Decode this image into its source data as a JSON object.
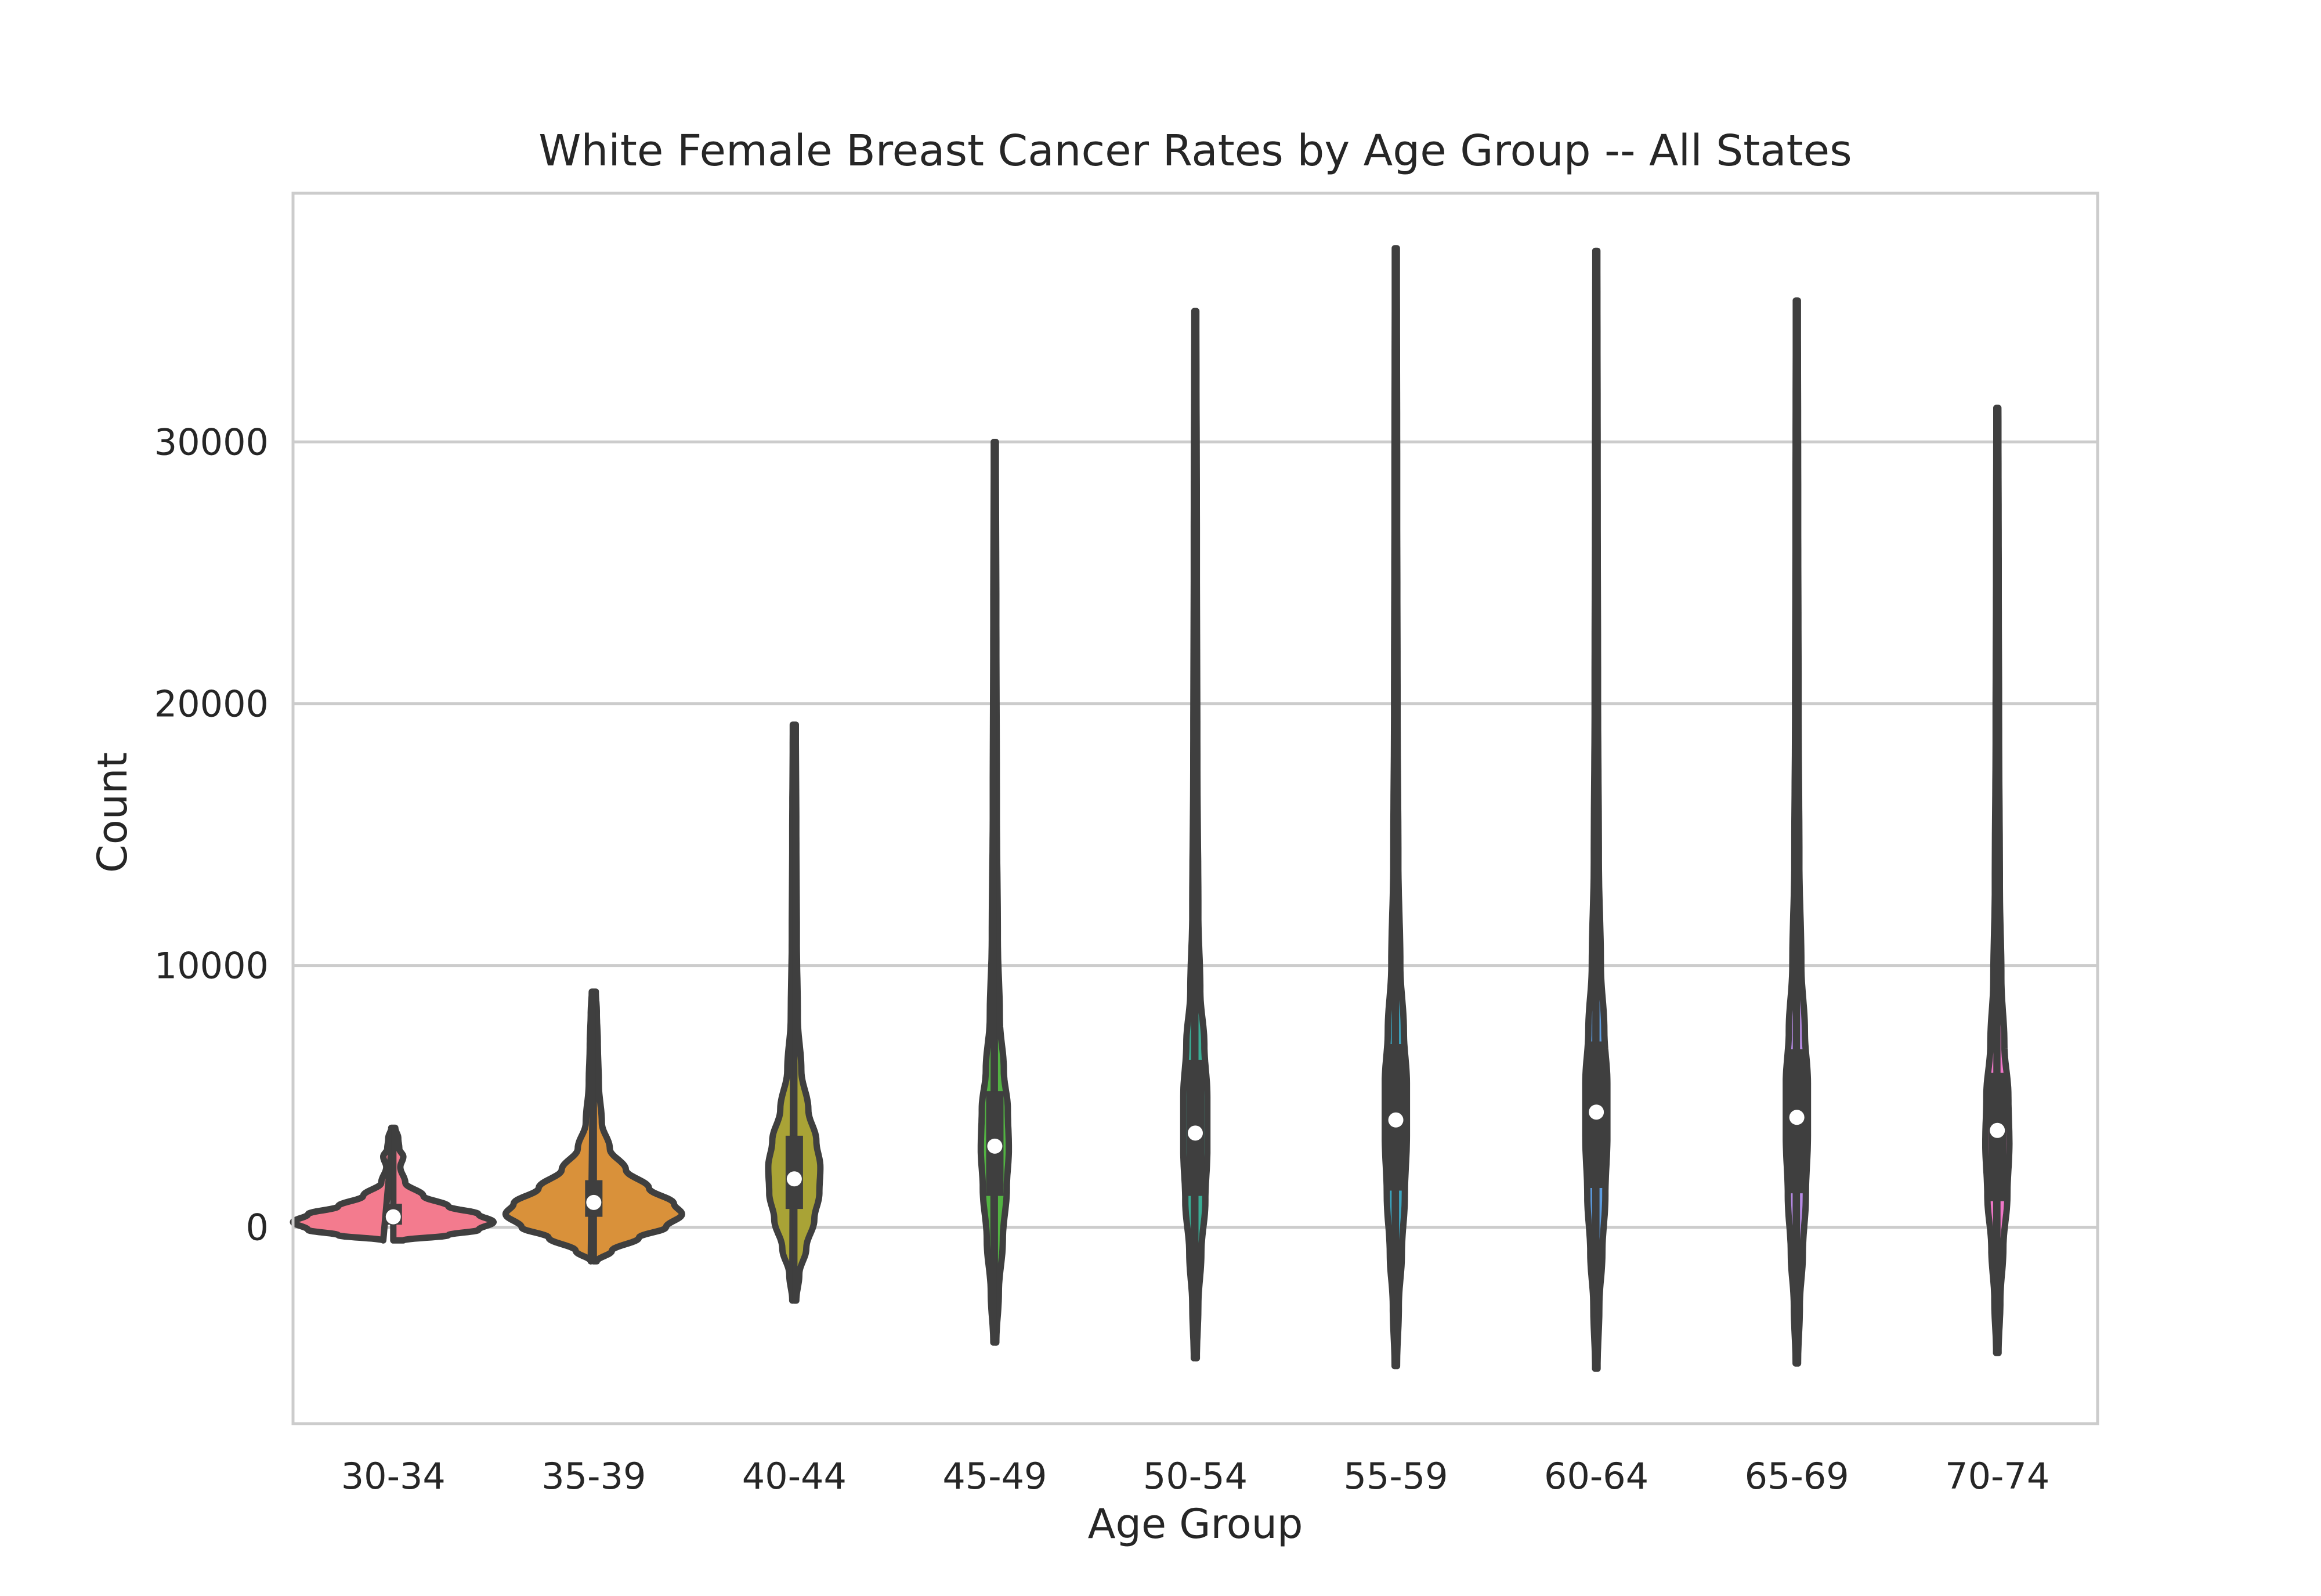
{
  "chart_data": {
    "type": "violin",
    "title": "White Female Breast Cancer Rates by Age Group -- All States",
    "xlabel": "Age Group",
    "ylabel": "Count",
    "ylim": [
      -7500,
      39500
    ],
    "yticks": [
      0,
      10000,
      20000,
      30000
    ],
    "grid": true,
    "categories": [
      "30-34",
      "35-39",
      "40-44",
      "45-49",
      "50-54",
      "55-59",
      "60-64",
      "65-69",
      "70-74"
    ],
    "colors": [
      "#F37B8E",
      "#D9913A",
      "#A9A336",
      "#52B342",
      "#38AE95",
      "#3AA6C1",
      "#5B9BE0",
      "#B78AE6",
      "#EF76C7"
    ],
    "outline_color": "#3F3F3F",
    "violins": [
      {
        "category": "30-34",
        "min": -500,
        "max": 3800,
        "q1": 100,
        "median": 400,
        "q3": 900,
        "profile": [
          [
            -500,
            0.1
          ],
          [
            -300,
            0.55
          ],
          [
            -100,
            0.85
          ],
          [
            200,
            1.0
          ],
          [
            500,
            0.85
          ],
          [
            800,
            0.55
          ],
          [
            1200,
            0.3
          ],
          [
            1700,
            0.12
          ],
          [
            2300,
            0.07
          ],
          [
            2700,
            0.1
          ],
          [
            3000,
            0.06
          ],
          [
            3400,
            0.05
          ],
          [
            3800,
            0.02
          ]
        ]
      },
      {
        "category": "35-39",
        "min": -1300,
        "max": 9000,
        "q1": 400,
        "median": 950,
        "q3": 1800,
        "profile": [
          [
            -1300,
            0.03
          ],
          [
            -900,
            0.18
          ],
          [
            -400,
            0.45
          ],
          [
            0,
            0.72
          ],
          [
            500,
            0.88
          ],
          [
            900,
            0.8
          ],
          [
            1500,
            0.55
          ],
          [
            2200,
            0.32
          ],
          [
            3000,
            0.16
          ],
          [
            4000,
            0.08
          ],
          [
            5500,
            0.05
          ],
          [
            7000,
            0.04
          ],
          [
            8200,
            0.03
          ],
          [
            9000,
            0.02
          ]
        ]
      },
      {
        "category": "40-44",
        "min": -2800,
        "max": 19200,
        "q1": 700,
        "median": 1850,
        "q3": 3500,
        "profile": [
          [
            -2800,
            0.02
          ],
          [
            -1800,
            0.05
          ],
          [
            -800,
            0.12
          ],
          [
            300,
            0.2
          ],
          [
            1300,
            0.25
          ],
          [
            2300,
            0.26
          ],
          [
            3300,
            0.22
          ],
          [
            4500,
            0.14
          ],
          [
            6000,
            0.07
          ],
          [
            8000,
            0.035
          ],
          [
            11000,
            0.025
          ],
          [
            15000,
            0.02
          ],
          [
            19200,
            0.015
          ]
        ]
      },
      {
        "category": "45-49",
        "min": -4400,
        "max": 30000,
        "q1": 1200,
        "median": 3100,
        "q3": 5200,
        "profile": [
          [
            -4400,
            0.015
          ],
          [
            -2500,
            0.04
          ],
          [
            -500,
            0.08
          ],
          [
            1500,
            0.12
          ],
          [
            3000,
            0.14
          ],
          [
            4500,
            0.13
          ],
          [
            6000,
            0.09
          ],
          [
            8000,
            0.05
          ],
          [
            11000,
            0.03
          ],
          [
            16000,
            0.02
          ],
          [
            23000,
            0.015
          ],
          [
            30000,
            0.01
          ]
        ]
      },
      {
        "category": "50-54",
        "min": -5000,
        "max": 35000,
        "q1": 1200,
        "median": 3600,
        "q3": 6400,
        "profile": [
          [
            -5000,
            0.015
          ],
          [
            -3000,
            0.03
          ],
          [
            -1000,
            0.06
          ],
          [
            1000,
            0.1
          ],
          [
            3000,
            0.12
          ],
          [
            5000,
            0.12
          ],
          [
            7000,
            0.09
          ],
          [
            9000,
            0.05
          ],
          [
            12000,
            0.03
          ],
          [
            18000,
            0.02
          ],
          [
            26000,
            0.015
          ],
          [
            35000,
            0.01
          ]
        ]
      },
      {
        "category": "55-59",
        "min": -5300,
        "max": 37400,
        "q1": 1400,
        "median": 4100,
        "q3": 7000,
        "profile": [
          [
            -5300,
            0.012
          ],
          [
            -3000,
            0.03
          ],
          [
            -1000,
            0.06
          ],
          [
            1200,
            0.09
          ],
          [
            3500,
            0.11
          ],
          [
            5500,
            0.11
          ],
          [
            7500,
            0.08
          ],
          [
            10000,
            0.045
          ],
          [
            14000,
            0.025
          ],
          [
            20000,
            0.017
          ],
          [
            28000,
            0.013
          ],
          [
            37400,
            0.01
          ]
        ]
      },
      {
        "category": "60-64",
        "min": -5400,
        "max": 37300,
        "q1": 1500,
        "median": 4400,
        "q3": 7100,
        "profile": [
          [
            -5400,
            0.012
          ],
          [
            -3000,
            0.03
          ],
          [
            -1000,
            0.06
          ],
          [
            1200,
            0.09
          ],
          [
            3500,
            0.11
          ],
          [
            5500,
            0.11
          ],
          [
            7500,
            0.08
          ],
          [
            10000,
            0.045
          ],
          [
            14000,
            0.025
          ],
          [
            20000,
            0.017
          ],
          [
            28000,
            0.013
          ],
          [
            37300,
            0.01
          ]
        ]
      },
      {
        "category": "65-69",
        "min": -5200,
        "max": 35400,
        "q1": 1300,
        "median": 4200,
        "q3": 6800,
        "profile": [
          [
            -5200,
            0.012
          ],
          [
            -3000,
            0.03
          ],
          [
            -1000,
            0.06
          ],
          [
            1200,
            0.09
          ],
          [
            3500,
            0.11
          ],
          [
            5500,
            0.11
          ],
          [
            7500,
            0.08
          ],
          [
            10000,
            0.045
          ],
          [
            14000,
            0.025
          ],
          [
            20000,
            0.017
          ],
          [
            27000,
            0.013
          ],
          [
            35400,
            0.01
          ]
        ]
      },
      {
        "category": "70-74",
        "min": -4800,
        "max": 31300,
        "q1": 1000,
        "median": 3700,
        "q3": 5900,
        "profile": [
          [
            -4800,
            0.012
          ],
          [
            -2800,
            0.03
          ],
          [
            -800,
            0.06
          ],
          [
            1200,
            0.1
          ],
          [
            3200,
            0.12
          ],
          [
            5000,
            0.11
          ],
          [
            7000,
            0.07
          ],
          [
            9500,
            0.04
          ],
          [
            13000,
            0.025
          ],
          [
            19000,
            0.017
          ],
          [
            25000,
            0.013
          ],
          [
            31300,
            0.01
          ]
        ]
      }
    ]
  }
}
